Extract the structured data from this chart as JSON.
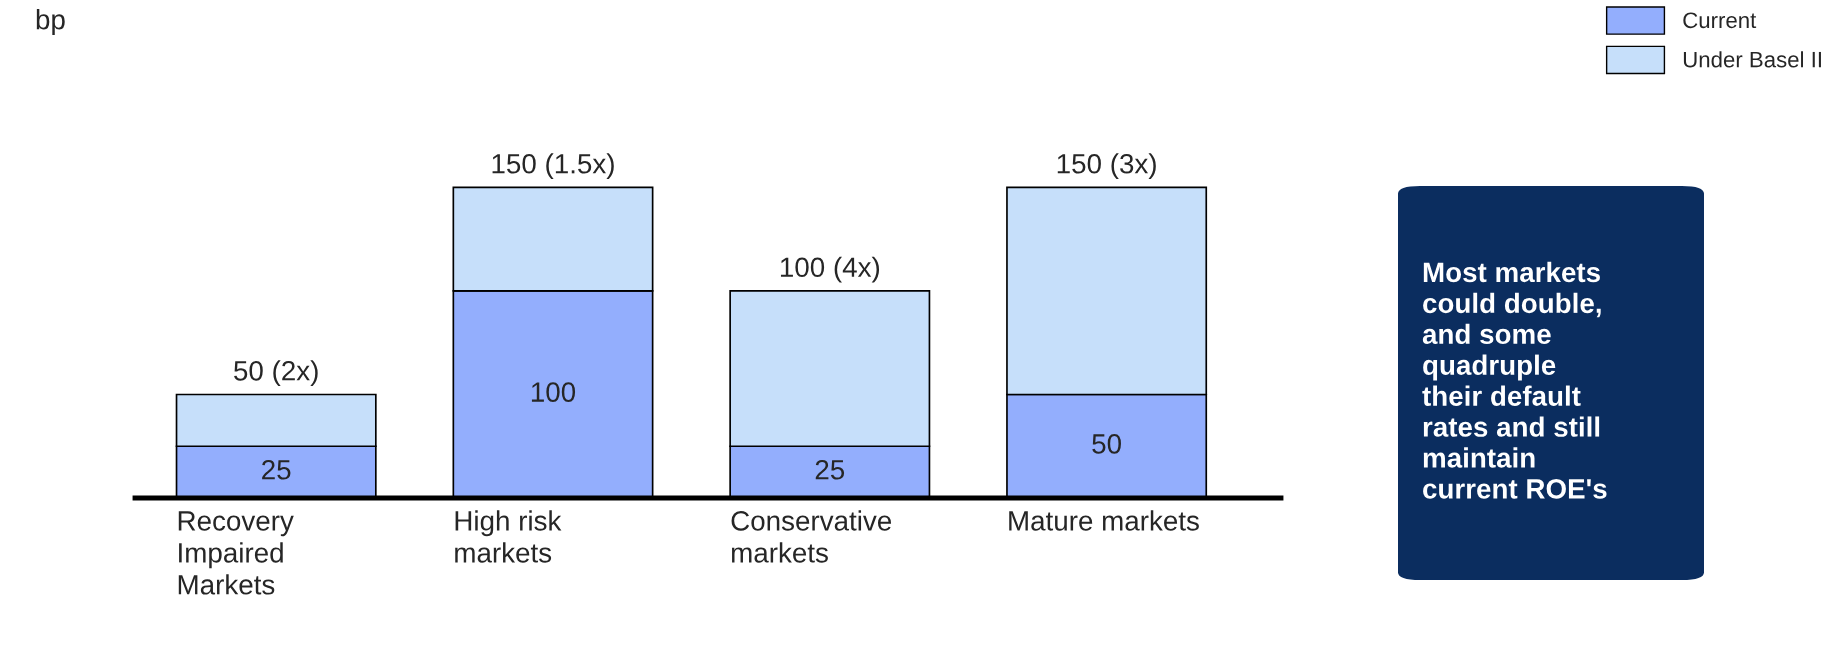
{
  "chart_data": {
    "type": "bar",
    "stacked": true,
    "categories": [
      "Recovery\nImpaired\nMarkets",
      "High risk\nmarkets",
      "Conservative\nmarkets",
      "Mature markets"
    ],
    "series": [
      {
        "name": "Current",
        "color": "#93aefd",
        "values": [
          25,
          100,
          25,
          50
        ],
        "value_labels": [
          "25",
          "100",
          "25",
          "50"
        ]
      },
      {
        "name": "Under Basel II",
        "color": "#c6dffa",
        "values": [
          25,
          50,
          75,
          100
        ]
      }
    ],
    "totals": [
      "50 (2x)",
      "150 (1.5x)",
      "100 (4x)",
      "150 (3x)"
    ],
    "annotations": [
      "bp",
      "Most markets\ncould double,\nand some\nquadruple\ntheir default\nrates and still\nmaintain\ncurrent ROE's"
    ],
    "grid": false,
    "legend": "top right"
  }
}
